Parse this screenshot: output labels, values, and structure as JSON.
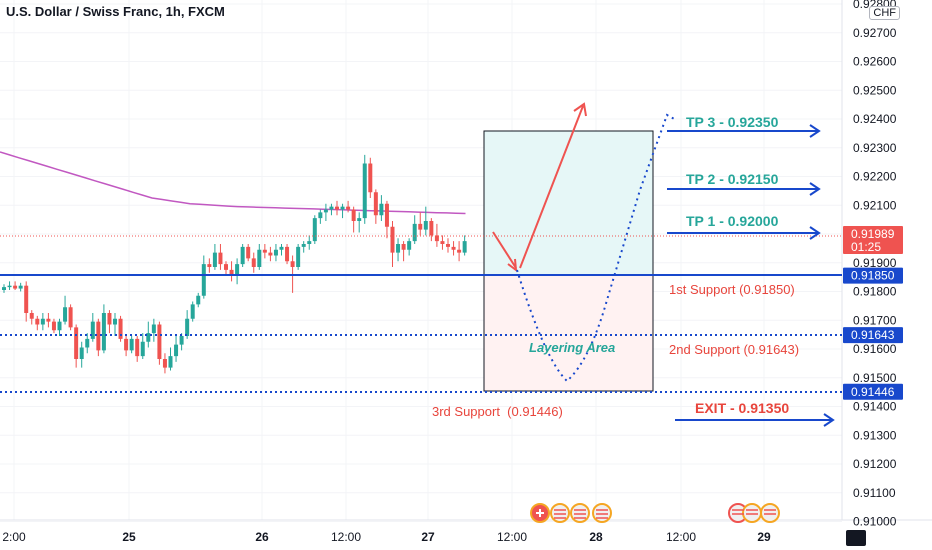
{
  "header": {
    "title": "U.S. Dollar / Swiss Franc, 1h, FXCM",
    "currency_badge": "CHF"
  },
  "colors": {
    "up": "#26a69a",
    "down": "#ef5350",
    "ma": "#c158c1",
    "support": "#1848cc",
    "tp_text": "#26a69a",
    "support_text": "#e8453c",
    "target": "#1848cc",
    "current": "#ef5350"
  },
  "chart_data": {
    "type": "candlestick",
    "title": "U.S. Dollar / Swiss Franc, 1h, FXCM",
    "y_ticks": [
      "0.92800",
      "0.92700",
      "0.92600",
      "0.92500",
      "0.92400",
      "0.92300",
      "0.92200",
      "0.92100",
      "0.92000",
      "0.91900",
      "0.91800",
      "0.91700",
      "0.91600",
      "0.91500",
      "0.91400",
      "0.91300",
      "0.91200",
      "0.91100",
      "0.91000"
    ],
    "x_ticks": [
      "2:00",
      "25",
      "26",
      "12:00",
      "27",
      "12:00",
      "28",
      "12:00",
      "29"
    ],
    "price_tags": [
      {
        "label": "0.91989",
        "sub": "01:25",
        "kind": "current",
        "value": 0.91989
      },
      {
        "label": "0.91850",
        "kind": "support",
        "value": 0.9185
      },
      {
        "label": "0.91643",
        "kind": "support",
        "value": 0.91643
      },
      {
        "label": "0.91446",
        "kind": "support",
        "value": 0.91446
      }
    ],
    "support_lines": [
      {
        "value": 0.9185,
        "style": "solid"
      },
      {
        "value": 0.91643,
        "style": "dotted"
      },
      {
        "value": 0.91446,
        "style": "dotted"
      }
    ],
    "annotations": {
      "tp3": "TP 3 - 0.92350",
      "tp2": "TP 2 - 0.92150",
      "tp1": "TP 1 - 0.92000",
      "s1": "1st Support (0.91850)",
      "s2": "2nd Support (0.91643)",
      "s3": "3rd Support  (0.91446)",
      "exit": "EXIT - 0.91350",
      "layering": "Layering Area"
    },
    "candles": [
      [
        0.918,
        0.9182,
        0.9179,
        0.9181
      ],
      [
        0.9181,
        0.9183,
        0.918,
        0.91815
      ],
      [
        0.91815,
        0.9183,
        0.918,
        0.91805
      ],
      [
        0.91805,
        0.91825,
        0.91795,
        0.91815
      ],
      [
        0.91815,
        0.9183,
        0.9169,
        0.9172
      ],
      [
        0.9172,
        0.9173,
        0.9168,
        0.917
      ],
      [
        0.917,
        0.9171,
        0.9166,
        0.9168
      ],
      [
        0.9168,
        0.9172,
        0.9166,
        0.917
      ],
      [
        0.917,
        0.9172,
        0.9167,
        0.9169
      ],
      [
        0.9169,
        0.917,
        0.9165,
        0.9166
      ],
      [
        0.9166,
        0.917,
        0.9164,
        0.9169
      ],
      [
        0.9169,
        0.9178,
        0.9168,
        0.9174
      ],
      [
        0.9174,
        0.9175,
        0.9166,
        0.9167
      ],
      [
        0.9167,
        0.9168,
        0.9153,
        0.9156
      ],
      [
        0.9156,
        0.9162,
        0.9153,
        0.916
      ],
      [
        0.916,
        0.9165,
        0.9158,
        0.9163
      ],
      [
        0.9163,
        0.9172,
        0.9162,
        0.9169
      ],
      [
        0.9169,
        0.917,
        0.9157,
        0.9159
      ],
      [
        0.9159,
        0.9175,
        0.9158,
        0.9172
      ],
      [
        0.9172,
        0.9173,
        0.9165,
        0.9168
      ],
      [
        0.9168,
        0.9172,
        0.9164,
        0.917
      ],
      [
        0.917,
        0.9171,
        0.9162,
        0.9163
      ],
      [
        0.9163,
        0.9164,
        0.9157,
        0.9159
      ],
      [
        0.9159,
        0.9164,
        0.9158,
        0.9163
      ],
      [
        0.9163,
        0.9164,
        0.9155,
        0.9157
      ],
      [
        0.9157,
        0.9165,
        0.9156,
        0.9162
      ],
      [
        0.9162,
        0.9169,
        0.916,
        0.9165
      ],
      [
        0.9165,
        0.917,
        0.9162,
        0.9168
      ],
      [
        0.9168,
        0.9169,
        0.9154,
        0.9156
      ],
      [
        0.9156,
        0.9158,
        0.9151,
        0.9153
      ],
      [
        0.9153,
        0.916,
        0.9152,
        0.9157
      ],
      [
        0.9157,
        0.9164,
        0.9155,
        0.9161
      ],
      [
        0.9161,
        0.9165,
        0.9159,
        0.9164
      ],
      [
        0.9164,
        0.9173,
        0.9163,
        0.917
      ],
      [
        0.917,
        0.9176,
        0.9169,
        0.9175
      ],
      [
        0.9175,
        0.9179,
        0.9174,
        0.9178
      ],
      [
        0.9178,
        0.9192,
        0.9177,
        0.9189
      ],
      [
        0.9189,
        0.9191,
        0.9186,
        0.9188
      ],
      [
        0.9188,
        0.9196,
        0.9187,
        0.9193
      ],
      [
        0.9193,
        0.9196,
        0.9187,
        0.9189
      ],
      [
        0.9189,
        0.919,
        0.9185,
        0.9187
      ],
      [
        0.9187,
        0.919,
        0.9183,
        0.9185
      ],
      [
        0.9185,
        0.9191,
        0.9182,
        0.9189
      ],
      [
        0.9189,
        0.9196,
        0.9188,
        0.9195
      ],
      [
        0.9195,
        0.9196,
        0.919,
        0.9191
      ],
      [
        0.9191,
        0.9193,
        0.9186,
        0.9188
      ],
      [
        0.9188,
        0.9196,
        0.9187,
        0.9194
      ],
      [
        0.9194,
        0.9196,
        0.9191,
        0.9193
      ],
      [
        0.9193,
        0.9195,
        0.919,
        0.9192
      ],
      [
        0.9192,
        0.9196,
        0.919,
        0.9194
      ],
      [
        0.9194,
        0.9196,
        0.9192,
        0.9195
      ],
      [
        0.9195,
        0.9196,
        0.9189,
        0.919
      ],
      [
        0.919,
        0.9192,
        0.9179,
        0.9188
      ],
      [
        0.9188,
        0.9196,
        0.9187,
        0.9195
      ],
      [
        0.9195,
        0.9197,
        0.9193,
        0.9196
      ],
      [
        0.9196,
        0.9199,
        0.9194,
        0.9197
      ],
      [
        0.9197,
        0.9206,
        0.9196,
        0.9205
      ],
      [
        0.9205,
        0.9208,
        0.9203,
        0.9207
      ],
      [
        0.9207,
        0.921,
        0.9204,
        0.9208
      ],
      [
        0.9208,
        0.921,
        0.9206,
        0.9209
      ],
      [
        0.9209,
        0.9211,
        0.9206,
        0.9208
      ],
      [
        0.9208,
        0.921,
        0.9205,
        0.9209
      ],
      [
        0.9209,
        0.9211,
        0.9207,
        0.9208
      ],
      [
        0.9208,
        0.9209,
        0.92,
        0.9204
      ],
      [
        0.9204,
        0.9207,
        0.92,
        0.9205
      ],
      [
        0.9205,
        0.9227,
        0.9203,
        0.9224
      ],
      [
        0.9224,
        0.9226,
        0.9212,
        0.9214
      ],
      [
        0.9214,
        0.9215,
        0.9203,
        0.9206
      ],
      [
        0.9206,
        0.9213,
        0.9204,
        0.921
      ],
      [
        0.921,
        0.9211,
        0.9198,
        0.9202
      ],
      [
        0.9202,
        0.9204,
        0.9188,
        0.9193
      ],
      [
        0.9193,
        0.9198,
        0.919,
        0.9196
      ],
      [
        0.9196,
        0.9197,
        0.919,
        0.9194
      ],
      [
        0.9194,
        0.9198,
        0.9192,
        0.9197
      ],
      [
        0.9197,
        0.9206,
        0.9196,
        0.9203
      ],
      [
        0.9203,
        0.9207,
        0.9199,
        0.9201
      ],
      [
        0.9201,
        0.9209,
        0.9199,
        0.9204
      ],
      [
        0.9204,
        0.9205,
        0.9197,
        0.9199
      ],
      [
        0.9199,
        0.9203,
        0.9195,
        0.9197
      ],
      [
        0.9197,
        0.9199,
        0.9194,
        0.9196
      ],
      [
        0.9196,
        0.9198,
        0.9193,
        0.9195
      ],
      [
        0.9195,
        0.9197,
        0.9192,
        0.9194
      ],
      [
        0.9194,
        0.9197,
        0.919,
        0.9193
      ],
      [
        0.9193,
        0.9199,
        0.9192,
        0.9197
      ]
    ],
    "ma": [
      0.9228,
      0.9227,
      0.9226,
      0.9225,
      0.9224,
      0.9223,
      0.9222,
      0.9221,
      0.922,
      0.9219,
      0.9218,
      0.9217,
      0.9216,
      0.9215,
      0.9214,
      0.9213,
      0.9212,
      0.92115,
      0.9211,
      0.92105,
      0.921,
      0.92098,
      0.92096,
      0.92094,
      0.92092,
      0.9209,
      0.92089,
      0.92088,
      0.92087,
      0.92086,
      0.92085,
      0.92084,
      0.92083,
      0.92082,
      0.92081,
      0.9208,
      0.92079,
      0.92078,
      0.92077,
      0.92076,
      0.92075,
      0.92074,
      0.92073,
      0.92072,
      0.92071,
      0.9207,
      0.92069,
      0.92068,
      0.92067,
      0.92066
    ]
  }
}
